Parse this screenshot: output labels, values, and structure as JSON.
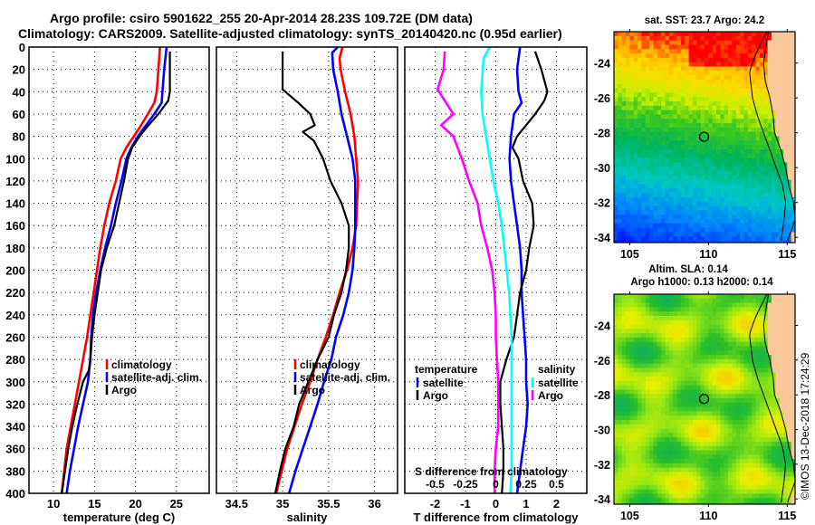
{
  "header": {
    "title_line1": "Argo profile: csiro 5901622_255 20-Apr-2014 28.23S 109.72E (DM data)",
    "title_line2": "Climatology: CARS2009. Satellite-adjusted climatology: synTS_20140420.nc (0.95d earlier)"
  },
  "colors": {
    "climatology": "#ff0000",
    "satellite": "#0000ff",
    "argo": "#000000",
    "s_satellite": "#00ffff",
    "s_argo": "#ff00ff",
    "land": "#f9c89b"
  },
  "copyright": "©IMOS 13-Dec-2018 17:24:29",
  "chart_data": [
    {
      "id": "temperature",
      "type": "line",
      "xlabel": "temperature (deg C)",
      "ylabel": "",
      "xlim": [
        7,
        29
      ],
      "ylim": [
        400,
        0
      ],
      "xticks": [
        10,
        15,
        20,
        25
      ],
      "yticks": [
        0,
        20,
        40,
        60,
        80,
        100,
        120,
        140,
        160,
        180,
        200,
        220,
        240,
        260,
        280,
        300,
        320,
        340,
        360,
        380,
        400
      ],
      "grid": true,
      "legend": [
        "climatology",
        "satellite-adj. clim.",
        "Argo"
      ],
      "legend_position": "lower-middle",
      "series": [
        {
          "name": "climatology",
          "color": "#ff0000",
          "depth": [
            0,
            20,
            40,
            50,
            60,
            70,
            80,
            90,
            100,
            120,
            140,
            160,
            180,
            200,
            220,
            240,
            260,
            280,
            300,
            320,
            340,
            360,
            380,
            400
          ],
          "values": [
            23.0,
            22.8,
            22.6,
            22.3,
            21.5,
            20.7,
            19.8,
            18.9,
            18.2,
            17.6,
            16.8,
            16.2,
            15.7,
            15.3,
            14.9,
            14.5,
            14.1,
            13.6,
            13.1,
            12.6,
            12.1,
            11.6,
            11.3,
            11.0
          ]
        },
        {
          "name": "satellite-adj. clim.",
          "color": "#0000ff",
          "depth": [
            0,
            20,
            40,
            50,
            60,
            70,
            80,
            90,
            100,
            120,
            140,
            160,
            180,
            200,
            220,
            240,
            260,
            280,
            300,
            320,
            340,
            360,
            380,
            400
          ],
          "values": [
            23.8,
            23.5,
            23.3,
            23.2,
            22.3,
            21.3,
            20.3,
            19.5,
            18.9,
            18.3,
            17.6,
            17.0,
            16.3,
            15.7,
            15.2,
            14.8,
            14.6,
            14.5,
            14.2,
            13.6,
            13.0,
            12.5,
            12.0,
            11.6
          ]
        },
        {
          "name": "Argo",
          "color": "#000000",
          "depth": [
            4,
            20,
            40,
            48,
            60,
            70,
            80,
            90,
            100,
            120,
            140,
            160,
            180,
            200,
            220,
            240,
            260,
            280,
            290,
            300,
            320,
            340,
            360,
            380,
            400
          ],
          "values": [
            24.2,
            24.2,
            24.2,
            24.0,
            22.8,
            21.6,
            20.5,
            19.6,
            19.1,
            18.6,
            18.0,
            17.4,
            16.5,
            15.8,
            15.4,
            15.0,
            14.7,
            14.5,
            14.3,
            13.6,
            12.9,
            12.3,
            11.8,
            11.4,
            11.0
          ]
        }
      ]
    },
    {
      "id": "salinity",
      "type": "line",
      "xlabel": "salinity",
      "xlim": [
        34.28,
        36.25
      ],
      "ylim": [
        400,
        0
      ],
      "xticks": [
        34.5,
        35,
        35.5,
        36
      ],
      "xtick_labels": [
        "34.5",
        "35",
        "35.5",
        "36"
      ],
      "grid": true,
      "legend": [
        "climatology",
        "satellite-adj. clim.",
        "Argo"
      ],
      "legend_position": "lower-middle",
      "series": [
        {
          "name": "climatology",
          "color": "#ff0000",
          "depth": [
            0,
            10,
            20,
            40,
            60,
            80,
            100,
            120,
            125,
            140,
            160,
            180,
            200,
            220,
            240,
            260,
            280,
            300,
            320,
            340,
            360,
            380,
            400
          ],
          "values": [
            35.65,
            35.62,
            35.63,
            35.68,
            35.74,
            35.78,
            35.8,
            35.82,
            35.82,
            35.81,
            35.8,
            35.76,
            35.7,
            35.62,
            35.55,
            35.47,
            35.38,
            35.3,
            35.21,
            35.13,
            35.05,
            34.99,
            34.93
          ]
        },
        {
          "name": "satellite-adj. clim.",
          "color": "#0000ff",
          "depth": [
            0,
            5,
            20,
            40,
            60,
            80,
            100,
            120,
            140,
            160,
            180,
            200,
            220,
            240,
            260,
            280,
            300,
            320,
            340,
            360,
            380,
            400
          ],
          "values": [
            35.6,
            35.54,
            35.55,
            35.6,
            35.64,
            35.7,
            35.76,
            35.79,
            35.79,
            35.79,
            35.78,
            35.76,
            35.72,
            35.66,
            35.58,
            35.53,
            35.45,
            35.38,
            35.3,
            35.22,
            35.14,
            35.07
          ]
        },
        {
          "name": "Argo",
          "color": "#000000",
          "depth": [
            4,
            20,
            38,
            50,
            60,
            70,
            76,
            84,
            100,
            120,
            140,
            160,
            180,
            200,
            220,
            240,
            260,
            280,
            300,
            320,
            340,
            360,
            380,
            400
          ],
          "values": [
            35.0,
            35.0,
            35.0,
            35.17,
            35.3,
            35.35,
            35.22,
            35.34,
            35.44,
            35.52,
            35.64,
            35.72,
            35.72,
            35.69,
            35.64,
            35.56,
            35.5,
            35.38,
            35.28,
            35.18,
            35.12,
            35.03,
            34.97,
            34.92
          ]
        }
      ]
    },
    {
      "id": "difference",
      "type": "line",
      "xlabel": "T difference from climatology",
      "xlim": [
        -3,
        3
      ],
      "ylim": [
        400,
        0
      ],
      "xticks": [
        -2,
        -1,
        0,
        1,
        2
      ],
      "secondary_xlabel": "S difference from climatology",
      "secondary_xlim": [
        -0.75,
        0.75
      ],
      "secondary_xticks": [
        -0.5,
        -0.25,
        0,
        0.25,
        0.5
      ],
      "secondary_xtick_labels": [
        "-0.5",
        "-0.25",
        "0",
        "0.25",
        "0.5"
      ],
      "grid": true,
      "legend_left_title": "temperature",
      "legend_left": [
        "satellite",
        "Argo"
      ],
      "legend_right_title": "salinity",
      "legend_right": [
        "satellite",
        "Argo"
      ],
      "series": [
        {
          "name": "T satellite",
          "color": "#0000ff",
          "depth": [
            0,
            20,
            40,
            50,
            60,
            80,
            100,
            120,
            140,
            160,
            180,
            200,
            220,
            240,
            260,
            280,
            300,
            320,
            340,
            360,
            380,
            400
          ],
          "values": [
            0.8,
            0.7,
            0.75,
            0.85,
            0.6,
            0.5,
            0.45,
            0.5,
            0.6,
            0.7,
            0.8,
            0.85,
            0.85,
            0.9,
            0.95,
            1.0,
            1.0,
            1.05,
            1.0,
            0.9,
            0.8,
            0.7
          ]
        },
        {
          "name": "T Argo",
          "color": "#000000",
          "depth": [
            4,
            20,
            40,
            48,
            60,
            70,
            80,
            90,
            100,
            120,
            140,
            160,
            180,
            200,
            220,
            240,
            260,
            280,
            300,
            320,
            340,
            360,
            380,
            400
          ],
          "values": [
            1.3,
            1.5,
            1.7,
            1.6,
            1.3,
            1.0,
            0.7,
            0.55,
            0.75,
            0.9,
            1.2,
            1.25,
            1.1,
            1.0,
            0.8,
            0.7,
            0.6,
            0.35,
            0.15,
            0.15,
            0.2,
            0.25,
            0.25,
            0.2
          ]
        },
        {
          "name": "S satellite",
          "color": "#00ffff",
          "depth": [
            0,
            10,
            40,
            60,
            80,
            100,
            120,
            140,
            160,
            180,
            200,
            220,
            240,
            260,
            280,
            300,
            320,
            340,
            360,
            380,
            400
          ],
          "values": [
            -0.05,
            -0.1,
            -0.12,
            -0.11,
            -0.08,
            -0.05,
            -0.02,
            0.02,
            0.05,
            0.07,
            0.09,
            0.11,
            0.12,
            0.13,
            0.13,
            0.13,
            0.13,
            0.13,
            0.13,
            0.13,
            0.12
          ]
        },
        {
          "name": "S Argo",
          "color": "#ff00ff",
          "depth": [
            4,
            20,
            38,
            60,
            70,
            80,
            100,
            120,
            140,
            160,
            180,
            200,
            220,
            240,
            260,
            280,
            300,
            320,
            340,
            360,
            380,
            400
          ],
          "values": [
            -0.42,
            -0.43,
            -0.48,
            -0.35,
            -0.45,
            -0.35,
            -0.28,
            -0.22,
            -0.15,
            -0.12,
            -0.07,
            -0.03,
            -0.01,
            0.0,
            0.0,
            0.01,
            0.02,
            0.02,
            0.02,
            0.0,
            -0.01,
            -0.01
          ]
        }
      ]
    },
    {
      "id": "sst-map",
      "type": "heatmap",
      "title": "sat. SST: 23.7 Argo: 24.2",
      "xlim": [
        104,
        115.5
      ],
      "ylim": [
        -34.3,
        -22.2
      ],
      "xticks": [
        105,
        110,
        115
      ],
      "yticks": [
        -24,
        -26,
        -28,
        -30,
        -32,
        -34
      ],
      "marker": {
        "lon": 109.72,
        "lat": -28.23
      }
    },
    {
      "id": "sla-map",
      "type": "heatmap",
      "title_line1": "Altim. SLA: 0.14",
      "title_line2": "Argo h1000: 0.13 h2000: 0.14",
      "xlim": [
        104,
        115.5
      ],
      "ylim": [
        -34.3,
        -22.2
      ],
      "xticks": [
        105,
        110,
        115
      ],
      "yticks": [
        -24,
        -26,
        -28,
        -30,
        -32,
        -34
      ],
      "marker": {
        "lon": 109.72,
        "lat": -28.23
      }
    }
  ]
}
